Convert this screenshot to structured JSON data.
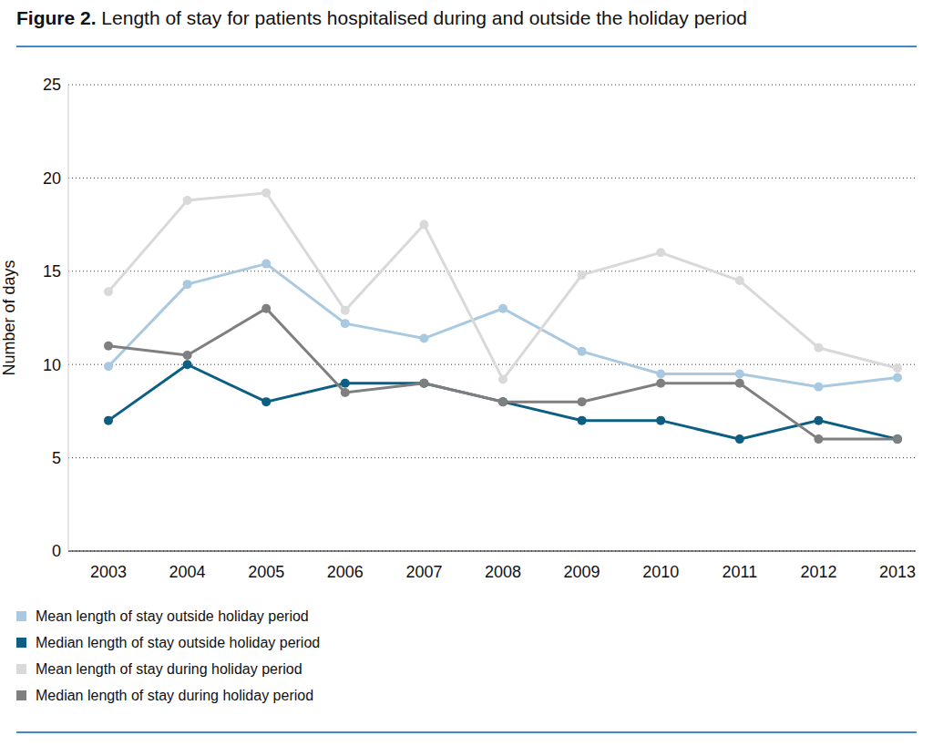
{
  "chart_data": {
    "type": "line",
    "title": "Figure 2. Length of stay for patients hospitalised during and outside the holiday period",
    "y_label": "Number of days",
    "categories": [
      "2003",
      "2004",
      "2005",
      "2006",
      "2007",
      "2008",
      "2009",
      "2010",
      "2011",
      "2012",
      "2013"
    ],
    "series": [
      {
        "name": "Mean length of stay outside holiday period",
        "color": "#a9c9e0",
        "values": [
          9.9,
          14.3,
          15.4,
          12.2,
          11.4,
          13.0,
          10.7,
          9.5,
          9.5,
          8.8,
          9.3
        ]
      },
      {
        "name": "Median length of stay outside holiday period",
        "color": "#0c5f82",
        "values": [
          7,
          10,
          8,
          9,
          9,
          8,
          7,
          7,
          6,
          7,
          6
        ]
      },
      {
        "name": "Mean length of stay during holiday period",
        "color": "#d9d9d9",
        "values": [
          13.9,
          18.8,
          19.2,
          12.9,
          17.5,
          9.2,
          14.8,
          16.0,
          14.5,
          10.9,
          9.8
        ]
      },
      {
        "name": "Median length of stay during holiday period",
        "color": "#7f7f7f",
        "values": [
          11,
          10.5,
          13,
          8.5,
          9,
          8,
          8,
          9,
          9,
          6,
          6
        ]
      }
    ],
    "ylim": [
      0,
      25
    ],
    "yticks": [
      0,
      5,
      10,
      15,
      20,
      25
    ],
    "grid": true,
    "legend": "bottom",
    "marker": "circle"
  }
}
